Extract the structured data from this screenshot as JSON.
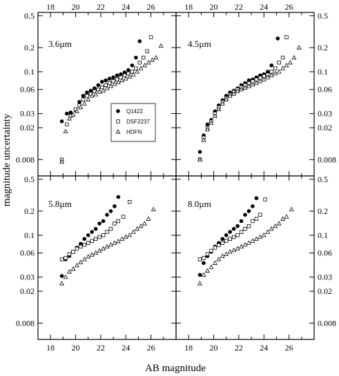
{
  "figure": {
    "xlabel": "AB magnitude",
    "ylabel": "magnitude uncertainty"
  },
  "chart_data": {
    "type": "scatter",
    "xlim": [
      17,
      28
    ],
    "ylim": [
      0.005,
      0.55
    ],
    "yscale": "log",
    "x_ticks": [
      18,
      20,
      22,
      24,
      26
    ],
    "x_tick_labels": [
      "18",
      "20",
      "22",
      "24",
      "26"
    ],
    "y_ticks": [
      0.008,
      0.02,
      0.03,
      0.06,
      0.1,
      0.2,
      0.5
    ],
    "y_tick_labels": [
      "0.008",
      "0.02",
      "0.03",
      "0.06",
      "0.1",
      "0.2",
      "0.5"
    ],
    "grid": false,
    "legend": {
      "panel": "3.6µm",
      "placement": "lower-center",
      "entries": [
        {
          "label": "Q1422",
          "marker": "filled-circle"
        },
        {
          "label": "DSF2237",
          "marker": "open-square"
        },
        {
          "label": "HDFN",
          "marker": "open-triangle"
        }
      ]
    },
    "panels": [
      {
        "label": "3.6µm",
        "series": [
          {
            "name": "Q1422",
            "x": [
              18.9,
              19.3,
              19.6,
              20.0,
              20.3,
              20.6,
              20.9,
              21.2,
              21.5,
              21.8,
              22.1,
              22.4,
              22.7,
              23.0,
              23.3,
              23.6,
              23.9,
              24.2,
              24.5,
              24.8,
              25.1
            ],
            "y": [
              0.024,
              0.03,
              0.031,
              0.033,
              0.042,
              0.05,
              0.055,
              0.058,
              0.062,
              0.068,
              0.075,
              0.078,
              0.082,
              0.085,
              0.09,
              0.093,
              0.098,
              0.105,
              0.12,
              0.15,
              0.24
            ]
          },
          {
            "name": "DSF2237",
            "x": [
              18.9,
              19.3,
              19.6,
              20.0,
              20.3,
              20.6,
              20.9,
              21.2,
              21.5,
              21.8,
              22.1,
              22.4,
              22.7,
              23.0,
              23.3,
              23.6,
              23.9,
              24.2,
              24.5,
              24.8,
              25.1,
              25.4,
              25.7,
              26.0
            ],
            "y": [
              0.008,
              0.022,
              0.028,
              0.034,
              0.038,
              0.045,
              0.05,
              0.053,
              0.057,
              0.06,
              0.064,
              0.068,
              0.072,
              0.076,
              0.08,
              0.085,
              0.09,
              0.095,
              0.1,
              0.11,
              0.13,
              0.15,
              0.18,
              0.27
            ]
          },
          {
            "name": "HDFN",
            "x": [
              18.9,
              19.2,
              19.5,
              19.8,
              20.1,
              20.4,
              20.7,
              21.0,
              21.3,
              21.6,
              21.9,
              22.2,
              22.5,
              22.8,
              23.1,
              23.4,
              23.7,
              24.0,
              24.3,
              24.6,
              24.9,
              25.2,
              25.5,
              25.8,
              26.1,
              26.4,
              26.8
            ],
            "y": [
              0.0075,
              0.018,
              0.026,
              0.029,
              0.032,
              0.036,
              0.04,
              0.045,
              0.05,
              0.052,
              0.056,
              0.058,
              0.062,
              0.066,
              0.07,
              0.074,
              0.078,
              0.082,
              0.087,
              0.092,
              0.1,
              0.11,
              0.12,
              0.13,
              0.14,
              0.15,
              0.21
            ]
          }
        ]
      },
      {
        "label": "4.5µm",
        "series": [
          {
            "name": "Q1422",
            "x": [
              18.9,
              19.2,
              19.5,
              19.8,
              20.1,
              20.4,
              20.7,
              21.0,
              21.3,
              21.6,
              21.9,
              22.2,
              22.5,
              22.8,
              23.1,
              23.4,
              23.7,
              24.0,
              24.3,
              24.6,
              25.1
            ],
            "y": [
              0.01,
              0.016,
              0.022,
              0.025,
              0.032,
              0.038,
              0.044,
              0.05,
              0.055,
              0.058,
              0.062,
              0.068,
              0.072,
              0.078,
              0.08,
              0.085,
              0.09,
              0.093,
              0.1,
              0.12,
              0.26
            ]
          },
          {
            "name": "DSF2237",
            "x": [
              18.9,
              19.2,
              19.5,
              19.8,
              20.1,
              20.4,
              20.7,
              21.0,
              21.3,
              21.6,
              21.9,
              22.2,
              22.5,
              22.8,
              23.1,
              23.4,
              23.7,
              24.0,
              24.3,
              24.6,
              24.9,
              25.2,
              25.5,
              25.8
            ],
            "y": [
              0.008,
              0.015,
              0.02,
              0.024,
              0.03,
              0.036,
              0.042,
              0.047,
              0.052,
              0.056,
              0.06,
              0.064,
              0.068,
              0.072,
              0.076,
              0.08,
              0.084,
              0.088,
              0.092,
              0.1,
              0.11,
              0.13,
              0.15,
              0.27
            ]
          },
          {
            "name": "HDFN",
            "x": [
              18.9,
              19.2,
              19.5,
              19.8,
              20.1,
              20.4,
              20.7,
              21.0,
              21.3,
              21.6,
              21.9,
              22.2,
              22.5,
              22.8,
              23.1,
              23.4,
              23.7,
              24.0,
              24.3,
              24.6,
              24.9,
              25.2,
              25.5,
              25.8,
              26.1,
              26.4,
              26.8
            ],
            "y": [
              0.008,
              0.014,
              0.019,
              0.023,
              0.028,
              0.034,
              0.04,
              0.045,
              0.05,
              0.053,
              0.057,
              0.06,
              0.063,
              0.066,
              0.069,
              0.072,
              0.076,
              0.08,
              0.085,
              0.09,
              0.095,
              0.1,
              0.11,
              0.12,
              0.13,
              0.15,
              0.2
            ]
          }
        ]
      },
      {
        "label": "5.8µm",
        "series": [
          {
            "name": "Q1422",
            "x": [
              18.9,
              19.2,
              19.5,
              19.8,
              20.1,
              20.4,
              20.7,
              21.0,
              21.3,
              21.6,
              21.9,
              22.2,
              22.5,
              22.8,
              23.1,
              23.4
            ],
            "y": [
              0.031,
              0.05,
              0.055,
              0.062,
              0.07,
              0.078,
              0.09,
              0.1,
              0.11,
              0.12,
              0.14,
              0.15,
              0.18,
              0.2,
              0.23,
              0.3
            ]
          },
          {
            "name": "DSF2237",
            "x": [
              18.9,
              19.2,
              19.5,
              19.8,
              20.1,
              20.4,
              20.7,
              21.0,
              21.3,
              21.6,
              21.9,
              22.2,
              22.5,
              22.8,
              23.1,
              23.4,
              23.8,
              24.3
            ],
            "y": [
              0.05,
              0.052,
              0.058,
              0.062,
              0.068,
              0.072,
              0.076,
              0.08,
              0.085,
              0.09,
              0.095,
              0.1,
              0.11,
              0.12,
              0.14,
              0.15,
              0.17,
              0.26
            ]
          },
          {
            "name": "HDFN",
            "x": [
              18.9,
              19.2,
              19.5,
              19.8,
              20.1,
              20.4,
              20.7,
              21.0,
              21.3,
              21.6,
              21.9,
              22.2,
              22.5,
              22.8,
              23.1,
              23.4,
              23.7,
              24.0,
              24.3,
              24.6,
              24.9,
              25.2,
              25.5,
              25.8,
              26.2
            ],
            "y": [
              0.025,
              0.03,
              0.035,
              0.038,
              0.042,
              0.046,
              0.05,
              0.054,
              0.057,
              0.06,
              0.064,
              0.068,
              0.072,
              0.076,
              0.08,
              0.084,
              0.09,
              0.095,
              0.1,
              0.11,
              0.12,
              0.13,
              0.14,
              0.16,
              0.21
            ]
          }
        ]
      },
      {
        "label": "8.0µm",
        "series": [
          {
            "name": "Q1422",
            "x": [
              18.9,
              19.2,
              19.5,
              19.8,
              20.1,
              20.4,
              20.7,
              21.0,
              21.3,
              21.6,
              21.9,
              22.2,
              22.5,
              22.8,
              23.1,
              23.4
            ],
            "y": [
              0.032,
              0.045,
              0.055,
              0.062,
              0.072,
              0.08,
              0.09,
              0.1,
              0.11,
              0.12,
              0.13,
              0.15,
              0.18,
              0.2,
              0.23,
              0.29
            ]
          },
          {
            "name": "DSF2237",
            "x": [
              18.9,
              19.2,
              19.5,
              19.8,
              20.1,
              20.4,
              20.7,
              21.0,
              21.3,
              21.6,
              21.9,
              22.2,
              22.5,
              22.8,
              23.1,
              23.4,
              23.7,
              24.1
            ],
            "y": [
              0.05,
              0.052,
              0.058,
              0.064,
              0.07,
              0.075,
              0.08,
              0.085,
              0.09,
              0.095,
              0.1,
              0.11,
              0.12,
              0.13,
              0.15,
              0.16,
              0.18,
              0.28
            ]
          },
          {
            "name": "HDFN",
            "x": [
              18.9,
              19.2,
              19.5,
              19.8,
              20.1,
              20.4,
              20.7,
              21.0,
              21.3,
              21.6,
              21.9,
              22.2,
              22.5,
              22.8,
              23.1,
              23.4,
              23.7,
              24.0,
              24.3,
              24.6,
              24.9,
              25.2,
              25.5,
              25.8,
              26.2
            ],
            "y": [
              0.025,
              0.032,
              0.036,
              0.04,
              0.045,
              0.05,
              0.055,
              0.058,
              0.062,
              0.065,
              0.068,
              0.072,
              0.076,
              0.08,
              0.085,
              0.09,
              0.095,
              0.1,
              0.11,
              0.12,
              0.13,
              0.14,
              0.16,
              0.17,
              0.21
            ]
          }
        ]
      }
    ]
  }
}
